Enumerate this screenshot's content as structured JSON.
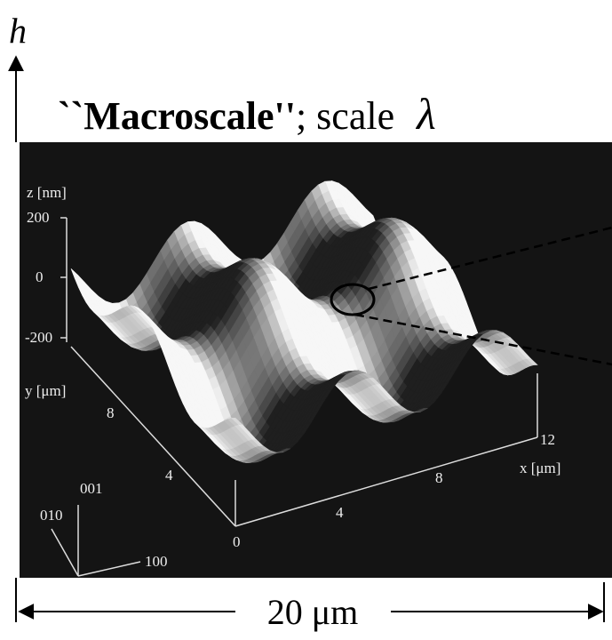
{
  "axis_label": "h",
  "title": {
    "bold": "``Macroscale''",
    "rest": "; scale",
    "symbol": "λ"
  },
  "plot": {
    "z_label": "z [nm]",
    "z_ticks": [
      "200",
      "0",
      "-200"
    ],
    "y_label": "y [μm]",
    "y_ticks": [
      "8",
      "4"
    ],
    "x_label": "x [μm]",
    "x_ticks": [
      "0",
      "4",
      "8",
      "12"
    ]
  },
  "orientation": [
    "001",
    "010",
    "100"
  ],
  "scale_bar": "20 μm"
}
